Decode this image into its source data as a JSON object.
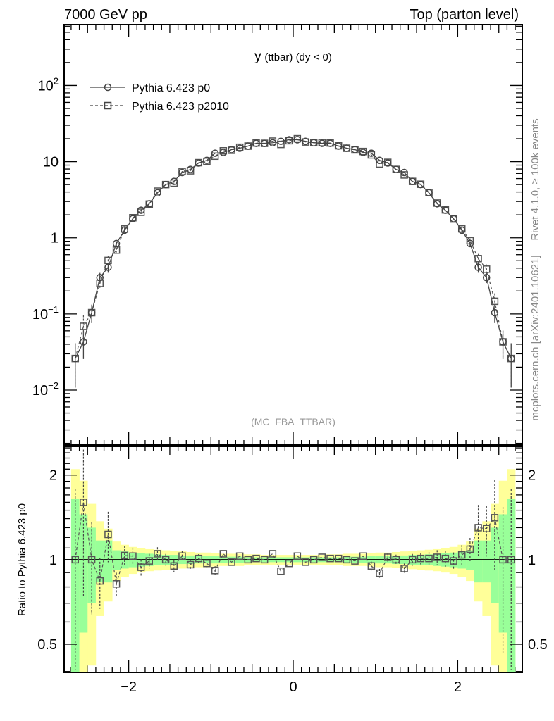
{
  "header": {
    "left": "7000 GeV pp",
    "right": "Top (parton level)"
  },
  "side_labels": {
    "rivet": "Rivet 4.1.0, ≥ 100k events",
    "mcplots": "mcplots.cern.ch [arXiv:2401.10621]"
  },
  "analysis_label": "(MC_FBA_TTBAR)",
  "chart_data": [
    {
      "type": "line",
      "title": "y (ttbar) (dy < 0)",
      "title_main": "y",
      "title_rest": "(ttbar) (dy < 0)",
      "yscale": "log",
      "ylim": [
        0.0019,
        630
      ],
      "xlim": [
        -2.785,
        2.785
      ],
      "ytick_labels": [
        {
          "v": 100,
          "base": "10",
          "exp": "2"
        },
        {
          "v": 10,
          "base": "10",
          "exp": ""
        },
        {
          "v": 1,
          "base": "1",
          "exp": ""
        },
        {
          "v": 0.1,
          "base": "10",
          "exp": "−1"
        },
        {
          "v": 0.01,
          "base": "10",
          "exp": "−2"
        }
      ],
      "legend": [
        {
          "name": "Pythia 6.423 p0",
          "marker": "circle",
          "line": "solid"
        },
        {
          "name": "Pythia 6.423 p2010",
          "marker": "square",
          "line": "dashed"
        }
      ],
      "legend_placement": "top-left",
      "x_start": -2.65,
      "x_step": 0.1,
      "p0_half": [
        0.026,
        0.043,
        0.104,
        0.3,
        0.41,
        0.84,
        1.26,
        1.78,
        2.3,
        2.8,
        3.9,
        5.0,
        5.5,
        7.2,
        7.9,
        9.6,
        10.4,
        12.9,
        13.2,
        14.4,
        15.0,
        16.0,
        17.4,
        17.4,
        17.7,
        18.5,
        19.4
      ]
    },
    {
      "type": "line",
      "ylabel": "Ratio to Pythia 6.423 p0",
      "yscale": "log",
      "ylim": [
        0.397,
        2.53
      ],
      "xtick_labels": [
        {
          "v": -2,
          "t": "−2"
        },
        {
          "v": 0,
          "t": "0"
        },
        {
          "v": 2,
          "t": "2"
        }
      ],
      "ytick_labels": [
        {
          "v": 2,
          "t": "2"
        },
        {
          "v": 1,
          "t": "1"
        },
        {
          "v": 0.5,
          "t": "0.5"
        }
      ],
      "ratio_p2010": [
        1.0,
        1.6,
        1.0,
        0.84,
        1.23,
        0.82,
        1.035,
        1.03,
        0.94,
        0.99,
        1.05,
        1.0,
        0.95,
        1.03,
        0.96,
        1.01,
        0.97,
        0.915,
        1.05,
        0.98,
        1.03,
        1.0,
        1.01,
        1.0,
        1.05,
        0.91,
        0.97,
        1.03,
        0.98,
        1.0,
        1.02,
        1.01,
        1.01,
        1.0,
        0.99,
        1.03,
        0.95,
        0.895,
        1.02,
        1.0,
        0.93,
        1.0,
        1.01,
        1.01,
        1.02,
        1.01,
        0.99,
        1.04,
        1.09,
        1.3,
        1.29,
        1.41,
        1.0,
        1.0
      ],
      "green_err_half": [
        0.65,
        0.45,
        0.3,
        0.17,
        0.17,
        0.08,
        0.07,
        0.06,
        0.055,
        0.05,
        0.045,
        0.04,
        0.04,
        0.035,
        0.035,
        0.03,
        0.03,
        0.03,
        0.025,
        0.025,
        0.025,
        0.02,
        0.02,
        0.02,
        0.02,
        0.02,
        0.02
      ],
      "yellow_err_half": [
        1.1,
        0.91,
        0.58,
        0.37,
        0.29,
        0.16,
        0.13,
        0.11,
        0.1,
        0.09,
        0.085,
        0.08,
        0.075,
        0.07,
        0.065,
        0.06,
        0.06,
        0.055,
        0.05,
        0.05,
        0.05,
        0.045,
        0.045,
        0.04,
        0.04,
        0.04,
        0.04
      ],
      "colors": {
        "green": "#99ff99",
        "yellow": "#ffff99",
        "markers": "#555555"
      }
    }
  ]
}
